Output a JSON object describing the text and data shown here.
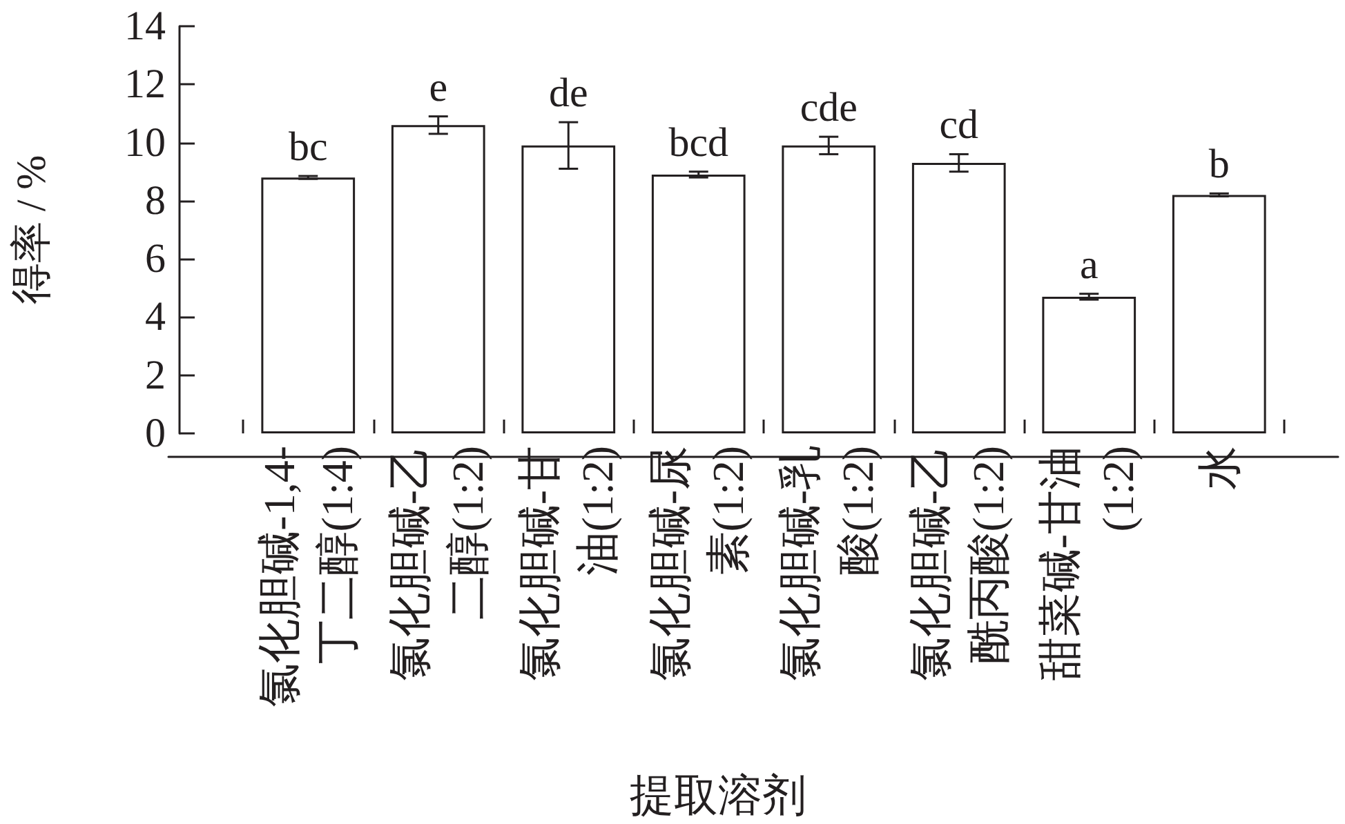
{
  "chart_data": {
    "type": "bar",
    "xlabel": "提取溶剂",
    "ylabel": "得率 / %",
    "categories": [
      "氯化胆碱-1,4-丁二醇(1:4)",
      "氯化胆碱-乙二醇(1:2)",
      "氯化胆碱-甘油(1:2)",
      "氯化胆碱-尿素(1:2)",
      "氯化胆碱-乳酸(1:2)",
      "氯化胆碱-乙酰丙酸(1:2)",
      "甜菜碱-甘油(1:2)",
      "水"
    ],
    "values": [
      8.8,
      10.6,
      9.9,
      8.9,
      9.9,
      9.3,
      4.7,
      8.2
    ],
    "errors": [
      0.05,
      0.3,
      0.8,
      0.1,
      0.3,
      0.3,
      0.1,
      0.05
    ],
    "color": "#ffffff",
    "ylim": [
      0,
      14
    ],
    "yticks": [
      0,
      2,
      4,
      6,
      8,
      10,
      12,
      14
    ],
    "grid": false,
    "annotations": [
      {
        "text": "bc",
        "x": "氯化胆碱-1,4-丁二醇(1:4)",
        "y": 8.85
      },
      {
        "text": "e",
        "x": "氯化胆碱-乙二醇(1:2)",
        "y": 10.9
      },
      {
        "text": "de",
        "x": "氯化胆碱-甘油(1:2)",
        "y": 10.7
      },
      {
        "text": "bcd",
        "x": "氯化胆碱-尿素(1:2)",
        "y": 9.0
      },
      {
        "text": "cde",
        "x": "氯化胆碱-乳酸(1:2)",
        "y": 10.2
      },
      {
        "text": "cd",
        "x": "氯化胆碱-乙酰丙酸(1:2)",
        "y": 9.6
      },
      {
        "text": "a",
        "x": "甜菜碱-甘油(1:2)",
        "y": 4.8
      },
      {
        "text": "b",
        "x": "水",
        "y": 8.25
      }
    ]
  }
}
